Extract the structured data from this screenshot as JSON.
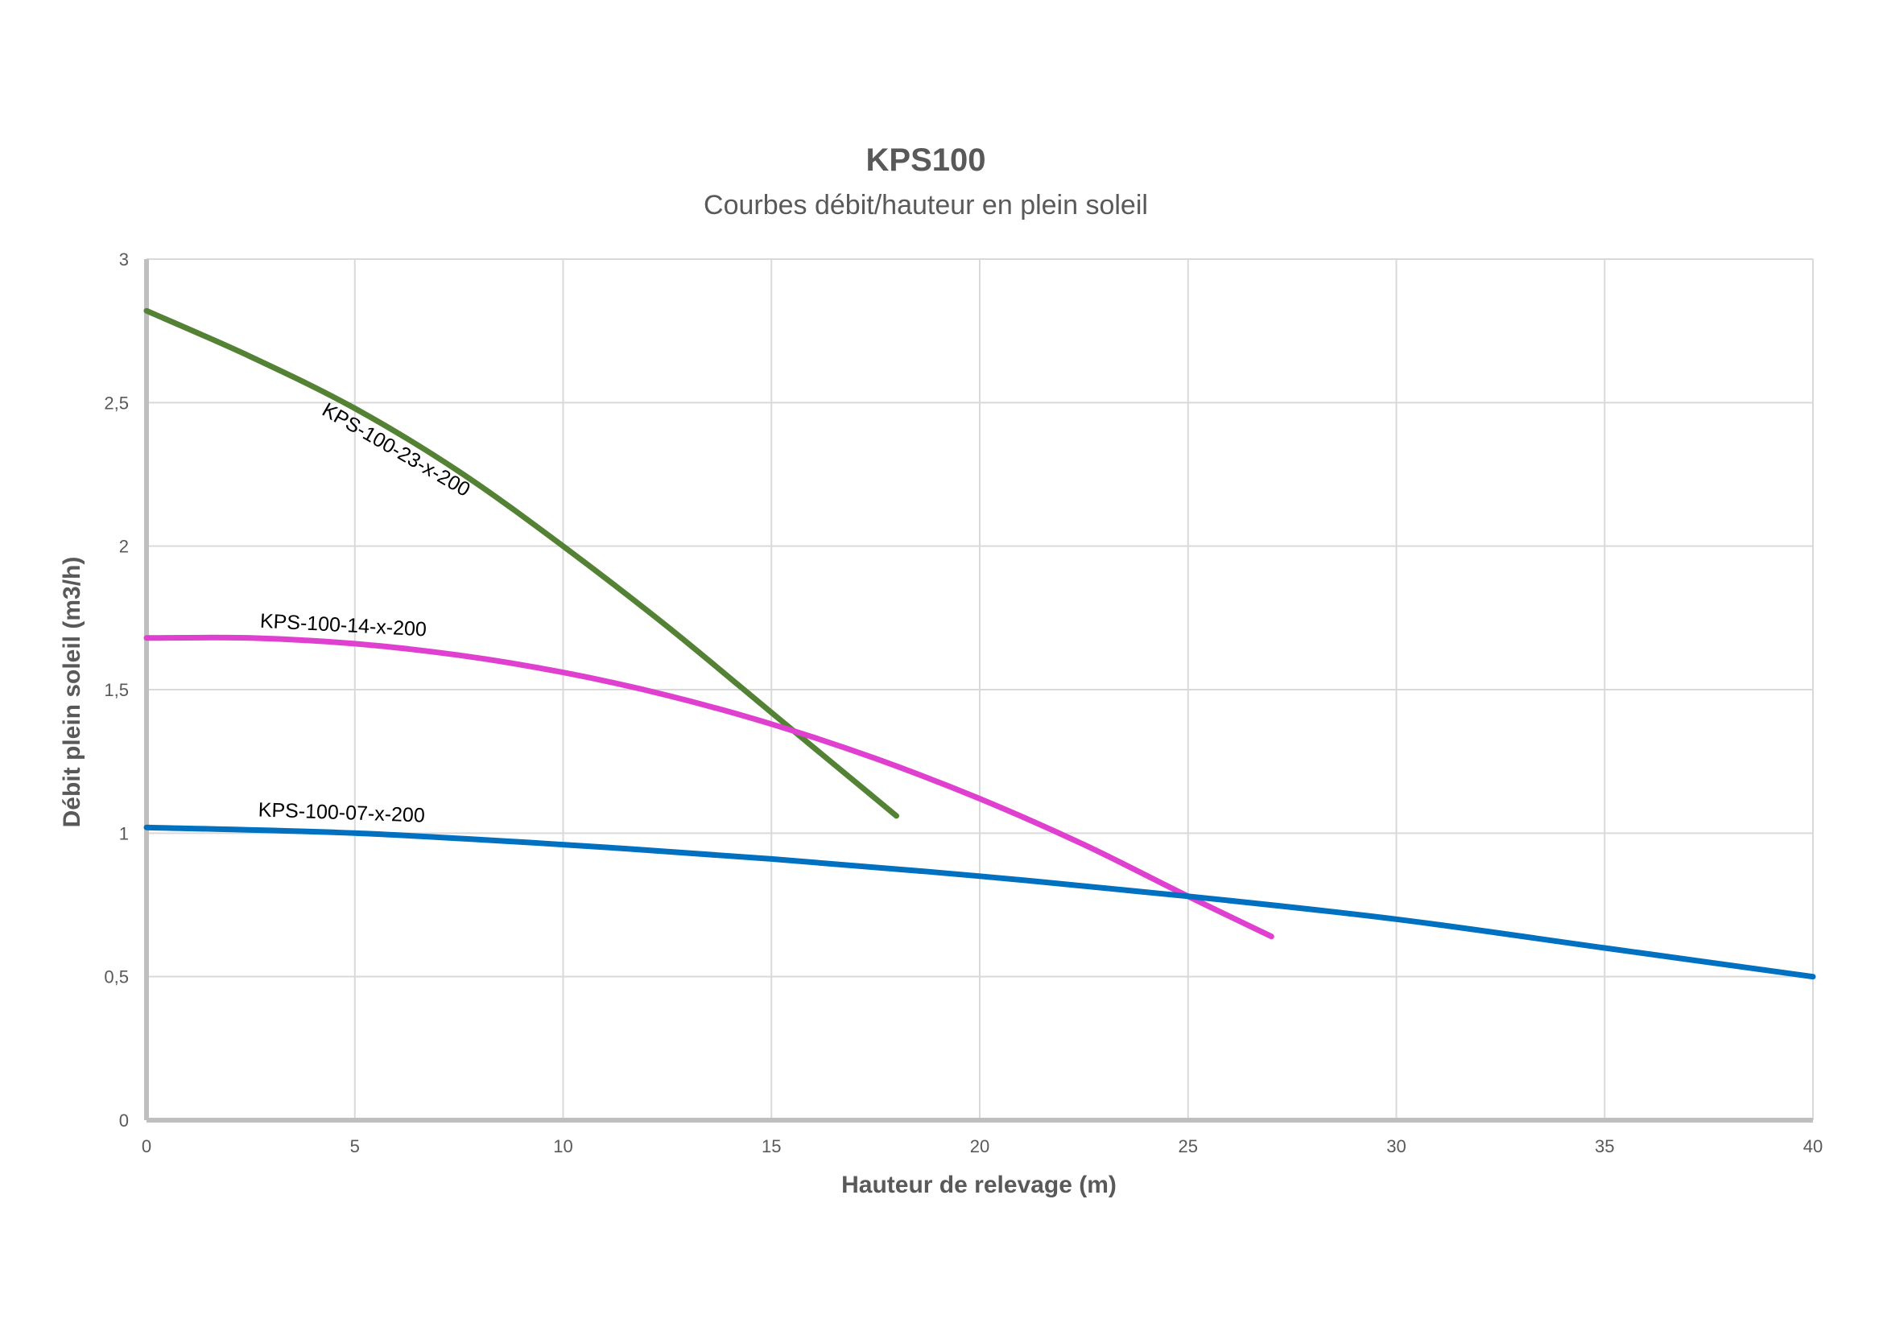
{
  "chart_data": {
    "type": "line",
    "title": "KPS100",
    "subtitle": "Courbes débit/hauteur en plein soleil",
    "xlabel": "Hauteur de relevage (m)",
    "ylabel": "Débit plein soleil (m3/h)",
    "xlim": [
      0,
      40
    ],
    "ylim": [
      0,
      3
    ],
    "x_ticks": [
      0,
      5,
      10,
      15,
      20,
      25,
      30,
      35,
      40
    ],
    "x_tick_labels": [
      "0",
      "5",
      "10",
      "15",
      "20",
      "25",
      "30",
      "35",
      "40"
    ],
    "y_ticks": [
      0,
      0.5,
      1,
      1.5,
      2,
      2.5,
      3
    ],
    "y_tick_labels": [
      "0",
      "0,5",
      "1",
      "1,5",
      "2",
      "2,5",
      "3"
    ],
    "grid": true,
    "legend": "none",
    "series": [
      {
        "name": "KPS-100-23-x-200",
        "color": "#548235",
        "x": [
          0,
          2.5,
          5,
          7.5,
          10,
          12.5,
          15,
          16,
          17,
          18
        ],
        "y": [
          2.82,
          2.66,
          2.48,
          2.26,
          2.0,
          1.72,
          1.42,
          1.3,
          1.18,
          1.06
        ]
      },
      {
        "name": "KPS-100-14-x-200",
        "color": "#E040D0",
        "x": [
          0,
          2.5,
          5,
          7.5,
          10,
          12.5,
          15,
          17.5,
          20,
          22.5,
          25,
          27
        ],
        "y": [
          1.68,
          1.68,
          1.66,
          1.62,
          1.56,
          1.48,
          1.38,
          1.26,
          1.12,
          0.96,
          0.78,
          0.64
        ]
      },
      {
        "name": "KPS-100-07-x-200",
        "color": "#0070C0",
        "x": [
          0,
          5,
          10,
          15,
          20,
          25,
          30,
          35,
          40
        ],
        "y": [
          1.02,
          1.0,
          0.96,
          0.91,
          0.85,
          0.78,
          0.7,
          0.6,
          0.5
        ]
      }
    ]
  }
}
